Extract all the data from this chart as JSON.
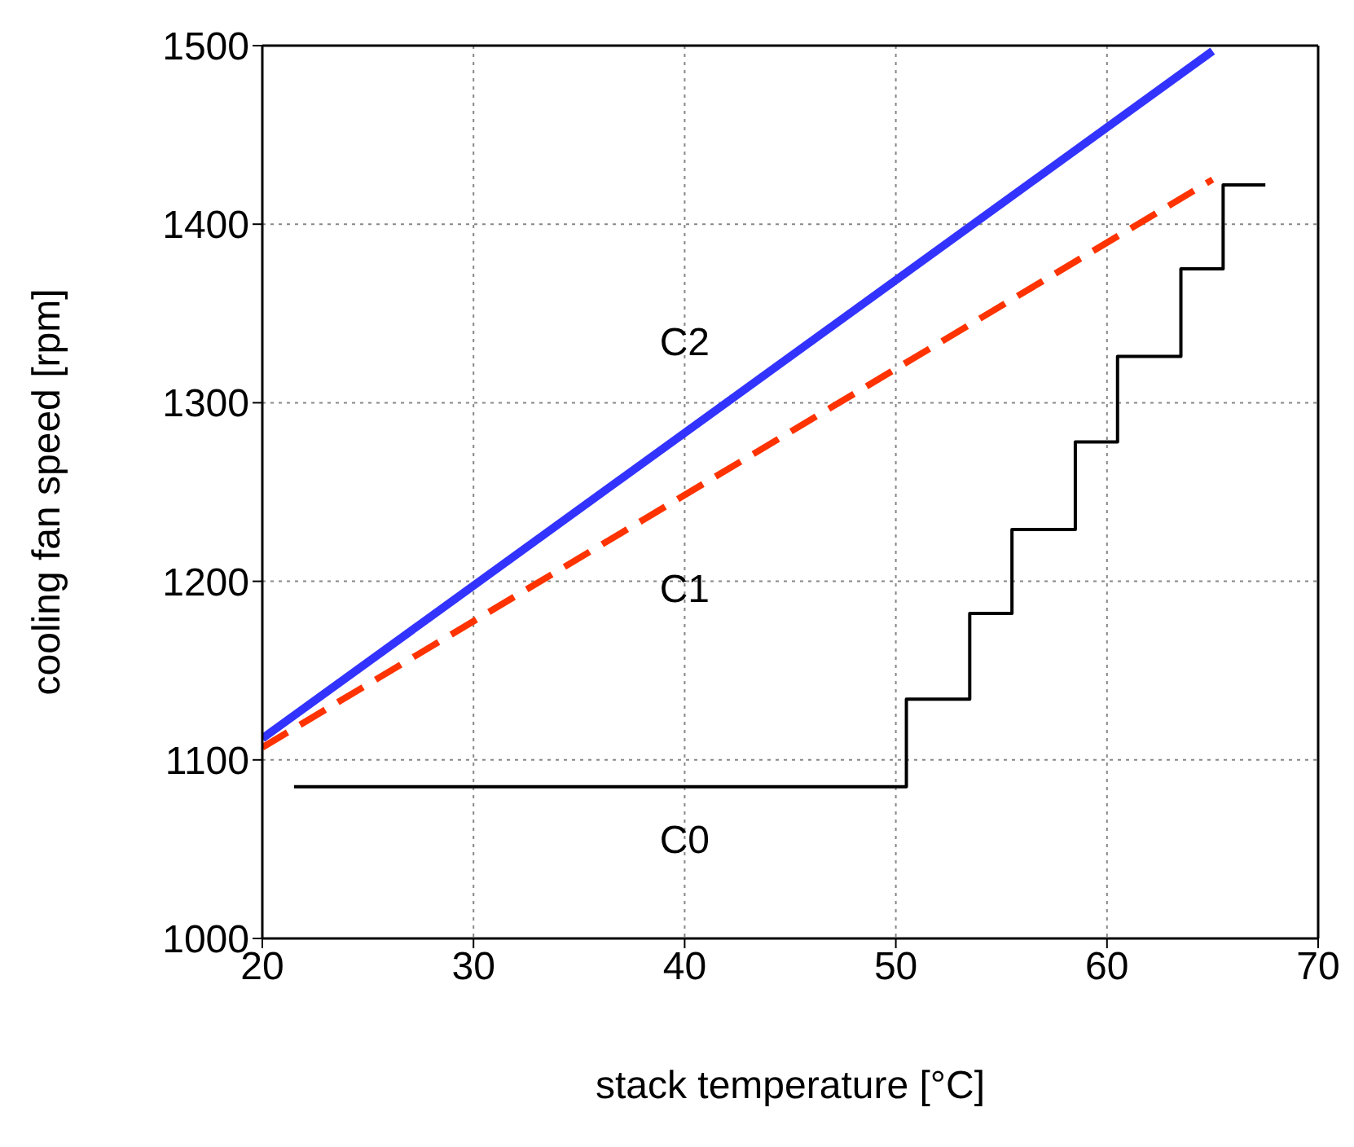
{
  "chart_data": {
    "type": "line",
    "xlabel": "stack temperature [°C]",
    "ylabel": "cooling fan speed [rpm]",
    "xlim": [
      20,
      70
    ],
    "xticks": [
      20,
      30,
      40,
      50,
      60,
      70
    ],
    "ylim": [
      1000,
      1500
    ],
    "yticks": [
      1000,
      1100,
      1200,
      1300,
      1400,
      1500
    ],
    "grid": true,
    "marker": "none",
    "series": [
      {
        "name": "C2",
        "color": "#3333ff",
        "line_style": "solid",
        "x": [
          20,
          65
        ],
        "values": [
          1112,
          1497
        ]
      },
      {
        "name": "C1",
        "color": "#ff3300",
        "line_style": "dashed",
        "x": [
          20,
          65
        ],
        "values": [
          1107,
          1425
        ]
      },
      {
        "name": "C0",
        "type": "step",
        "color": "#000000",
        "line_style": "solid",
        "x": [
          21.5,
          50.5,
          53.5,
          55.5,
          58.5,
          60.5,
          63.5,
          65.5,
          67.5
        ],
        "values": [
          1085,
          1134,
          1182,
          1229,
          1278,
          1326,
          1375,
          1422,
          1422
        ]
      }
    ]
  }
}
